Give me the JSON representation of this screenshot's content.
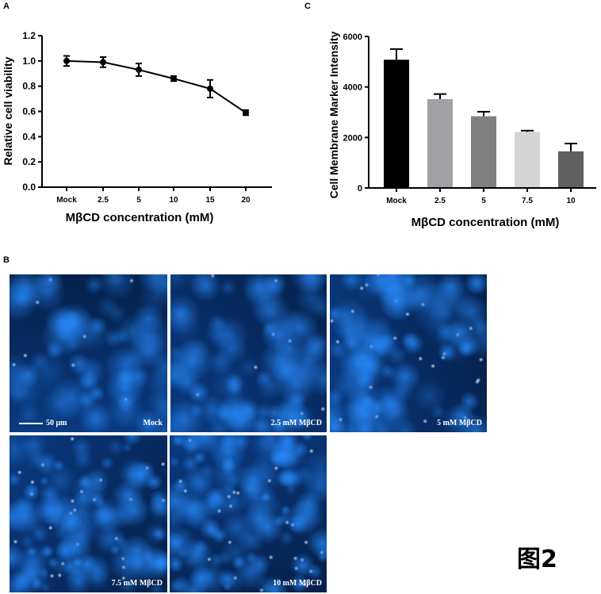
{
  "panels": {
    "a": "A",
    "b": "B",
    "c": "C"
  },
  "chart_data": [
    {
      "type": "line",
      "panel": "A",
      "title": "",
      "xlabel": "MβCD concentration (mM)",
      "ylabel": "Relative cell viability",
      "categories": [
        "Mock",
        "2.5",
        "5",
        "10",
        "15",
        "20"
      ],
      "values": [
        1.0,
        0.99,
        0.93,
        0.86,
        0.78,
        0.59
      ],
      "errors": [
        0.04,
        0.04,
        0.05,
        0.02,
        0.07,
        0.02
      ],
      "ylim": [
        0,
        1.2
      ],
      "yticks": [
        "0.0",
        "0.2",
        "0.4",
        "0.6",
        "0.8",
        "1.0",
        "1.2"
      ],
      "grid": false
    },
    {
      "type": "bar",
      "panel": "C",
      "title": "",
      "xlabel": "MβCD concentration (mM)",
      "ylabel": "Cell Membrane Marker Intensity",
      "categories": [
        "Mock",
        "2.5",
        "5",
        "7.5",
        "10"
      ],
      "values": [
        5080,
        3520,
        2840,
        2220,
        1450
      ],
      "errors": [
        420,
        200,
        180,
        50,
        310
      ],
      "colors": [
        "#000000",
        "#a1a1a5",
        "#808080",
        "#d4d4d4",
        "#606060"
      ],
      "ylim": [
        0,
        6000
      ],
      "yticks": [
        "0",
        "2000",
        "4000",
        "6000"
      ],
      "grid": false
    }
  ],
  "micrographs": [
    {
      "label": "Mock",
      "scale": "50 μm"
    },
    {
      "label": "2.5 mM MβCD"
    },
    {
      "label": "5 mM MβCD"
    },
    {
      "label": "7.5 mM MβCD"
    },
    {
      "label": "10 mM MβCD"
    }
  ],
  "figure_label": "图2"
}
